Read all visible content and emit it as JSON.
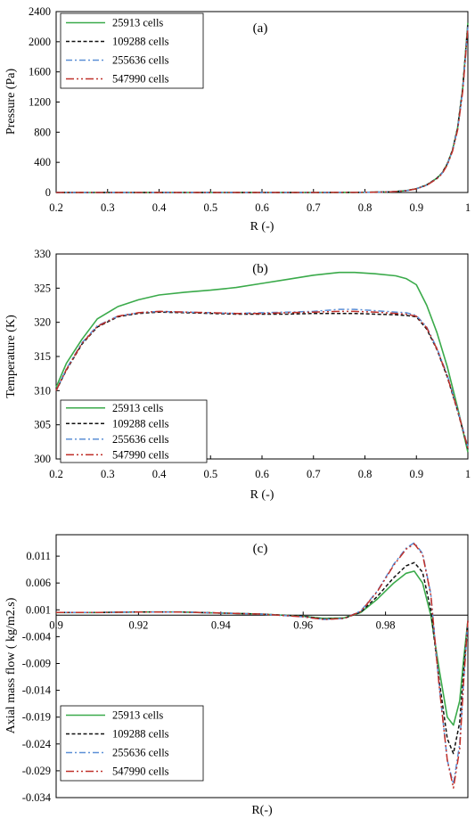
{
  "chart_data": [
    {
      "type": "line",
      "annotation": "(a)",
      "xlabel": "R (-)",
      "ylabel": "Pressure (Pa)",
      "xlim": [
        0.2,
        1.0
      ],
      "ylim": [
        0,
        2400
      ],
      "xticks": [
        "0.2",
        "0.3",
        "0.4",
        "0.5",
        "0.6",
        "0.7",
        "0.8",
        "0.9",
        "1"
      ],
      "yticks": [
        "0",
        "400",
        "800",
        "1200",
        "1600",
        "2000",
        "2400"
      ],
      "legend_position": "top-left",
      "x": [
        0.2,
        0.3,
        0.4,
        0.5,
        0.6,
        0.7,
        0.8,
        0.85,
        0.88,
        0.9,
        0.92,
        0.94,
        0.95,
        0.96,
        0.97,
        0.98,
        0.99,
        1.0
      ],
      "series": [
        {
          "name": "25913 cells",
          "color": "#3aaa4a",
          "dash": "solid",
          "values": [
            0,
            0,
            0,
            0,
            0,
            0,
            2,
            8,
            25,
            50,
            100,
            190,
            260,
            380,
            560,
            860,
            1380,
            2250
          ]
        },
        {
          "name": "109288 cells",
          "color": "#111111",
          "dash": "dashed",
          "values": [
            0,
            0,
            0,
            0,
            0,
            0,
            2,
            8,
            25,
            50,
            100,
            190,
            260,
            380,
            560,
            860,
            1380,
            2230
          ]
        },
        {
          "name": "255636 cells",
          "color": "#5b8fd6",
          "dash": "dashdot",
          "values": [
            0,
            0,
            0,
            0,
            0,
            0,
            2,
            8,
            24,
            48,
            98,
            185,
            255,
            370,
            550,
            840,
            1350,
            2200
          ]
        },
        {
          "name": "547990 cells",
          "color": "#c0302a",
          "dash": "dashdotdot",
          "values": [
            0,
            0,
            0,
            0,
            0,
            0,
            2,
            8,
            24,
            48,
            96,
            182,
            250,
            365,
            545,
            830,
            1340,
            2190
          ]
        }
      ]
    },
    {
      "type": "line",
      "annotation": "(b)",
      "xlabel": "R (-)",
      "ylabel": "Temperature (K)",
      "xlim": [
        0.2,
        1.0
      ],
      "ylim": [
        300,
        330
      ],
      "xticks": [
        "0.2",
        "0.3",
        "0.4",
        "0.5",
        "0.6",
        "0.7",
        "0.8",
        "0.9",
        "1"
      ],
      "yticks": [
        "300",
        "305",
        "310",
        "315",
        "320",
        "325",
        "330"
      ],
      "legend_position": "bottom-left",
      "x": [
        0.2,
        0.22,
        0.25,
        0.28,
        0.32,
        0.36,
        0.4,
        0.45,
        0.5,
        0.55,
        0.6,
        0.65,
        0.7,
        0.75,
        0.78,
        0.82,
        0.86,
        0.88,
        0.9,
        0.92,
        0.94,
        0.96,
        0.98,
        1.0
      ],
      "series": [
        {
          "name": "25913  cells",
          "color": "#3aaa4a",
          "dash": "solid",
          "values": [
            310.5,
            314.0,
            317.5,
            320.5,
            322.3,
            323.3,
            324.0,
            324.4,
            324.7,
            325.1,
            325.7,
            326.3,
            326.9,
            327.3,
            327.3,
            327.1,
            326.8,
            326.4,
            325.5,
            322.5,
            318.5,
            313.5,
            307.5,
            301.0
          ]
        },
        {
          "name": "109288 cells",
          "color": "#111111",
          "dash": "dashed",
          "values": [
            310.0,
            313.0,
            316.8,
            319.3,
            320.8,
            321.3,
            321.5,
            321.4,
            321.3,
            321.2,
            321.2,
            321.2,
            321.3,
            321.3,
            321.3,
            321.2,
            321.1,
            321.0,
            320.8,
            319.0,
            316.0,
            312.0,
            307.0,
            301.5
          ]
        },
        {
          "name": "255636 cells",
          "color": "#5b8fd6",
          "dash": "dashdot",
          "values": [
            310.0,
            313.2,
            317.0,
            319.5,
            320.9,
            321.4,
            321.6,
            321.5,
            321.4,
            321.3,
            321.4,
            321.5,
            321.6,
            321.9,
            321.9,
            321.7,
            321.5,
            321.4,
            321.0,
            319.3,
            316.2,
            312.3,
            307.2,
            301.8
          ]
        },
        {
          "name": "547990 cells",
          "color": "#c0302a",
          "dash": "dashdotdot",
          "values": [
            310.0,
            313.1,
            316.9,
            319.4,
            320.9,
            321.4,
            321.6,
            321.5,
            321.4,
            321.3,
            321.3,
            321.4,
            321.5,
            321.6,
            321.6,
            321.5,
            321.3,
            321.2,
            320.9,
            319.2,
            316.1,
            312.1,
            307.1,
            301.6
          ]
        }
      ]
    },
    {
      "type": "line",
      "annotation": "(c)",
      "xlabel": "R(-)",
      "ylabel": "Axial mass flow  ( kg/m2.s)",
      "xlim": [
        0.9,
        1.0
      ],
      "ylim": [
        -0.034,
        0.015
      ],
      "xticks": [
        "0.9",
        "0.92",
        "0.94",
        "0.96",
        "0.98"
      ],
      "yticks": [
        "0.011",
        "0.006",
        "0.001",
        "-0.004",
        "-0.009",
        "-0.014",
        "-0.019",
        "-0.024",
        "-0.029",
        "-0.034"
      ],
      "legend_position": "bottom-left",
      "x": [
        0.9,
        0.91,
        0.92,
        0.93,
        0.94,
        0.95,
        0.96,
        0.965,
        0.97,
        0.974,
        0.978,
        0.982,
        0.985,
        0.987,
        0.989,
        0.991,
        0.993,
        0.995,
        0.9965,
        0.998,
        0.999,
        1.0
      ],
      "series": [
        {
          "name": "25913 cells",
          "color": "#3aaa4a",
          "dash": "solid",
          "values": [
            0.0005,
            0.0005,
            0.0006,
            0.0006,
            0.0004,
            0.0002,
            -0.0002,
            -0.0006,
            -0.0005,
            0.0005,
            0.003,
            0.006,
            0.0078,
            0.0082,
            0.006,
            0.0,
            -0.01,
            -0.019,
            -0.0205,
            -0.016,
            -0.008,
            -0.001
          ]
        },
        {
          "name": "109288 cells",
          "color": "#111111",
          "dash": "dashed",
          "values": [
            0.0005,
            0.0005,
            0.0006,
            0.0006,
            0.0004,
            0.0002,
            -0.0002,
            -0.0007,
            -0.0006,
            0.0006,
            0.0035,
            0.007,
            0.0092,
            0.0098,
            0.008,
            0.001,
            -0.012,
            -0.023,
            -0.0258,
            -0.02,
            -0.01,
            -0.001
          ]
        },
        {
          "name": "255636 cells",
          "color": "#5b8fd6",
          "dash": "dashdot",
          "values": [
            0.0005,
            0.0005,
            0.0006,
            0.0006,
            0.0004,
            0.0002,
            -0.0003,
            -0.0008,
            -0.0006,
            0.0008,
            0.0045,
            0.0095,
            0.0125,
            0.0135,
            0.0115,
            0.004,
            -0.013,
            -0.027,
            -0.0315,
            -0.024,
            -0.012,
            -0.001
          ]
        },
        {
          "name": "547990 cells",
          "color": "#c0302a",
          "dash": "dashdotdot",
          "values": [
            0.0005,
            0.0005,
            0.0006,
            0.0006,
            0.0004,
            0.0002,
            -0.0003,
            -0.0008,
            -0.0006,
            0.0007,
            0.0044,
            0.0093,
            0.0123,
            0.0133,
            0.0113,
            0.0038,
            -0.013,
            -0.027,
            -0.0322,
            -0.025,
            -0.012,
            -0.001
          ]
        }
      ]
    }
  ]
}
